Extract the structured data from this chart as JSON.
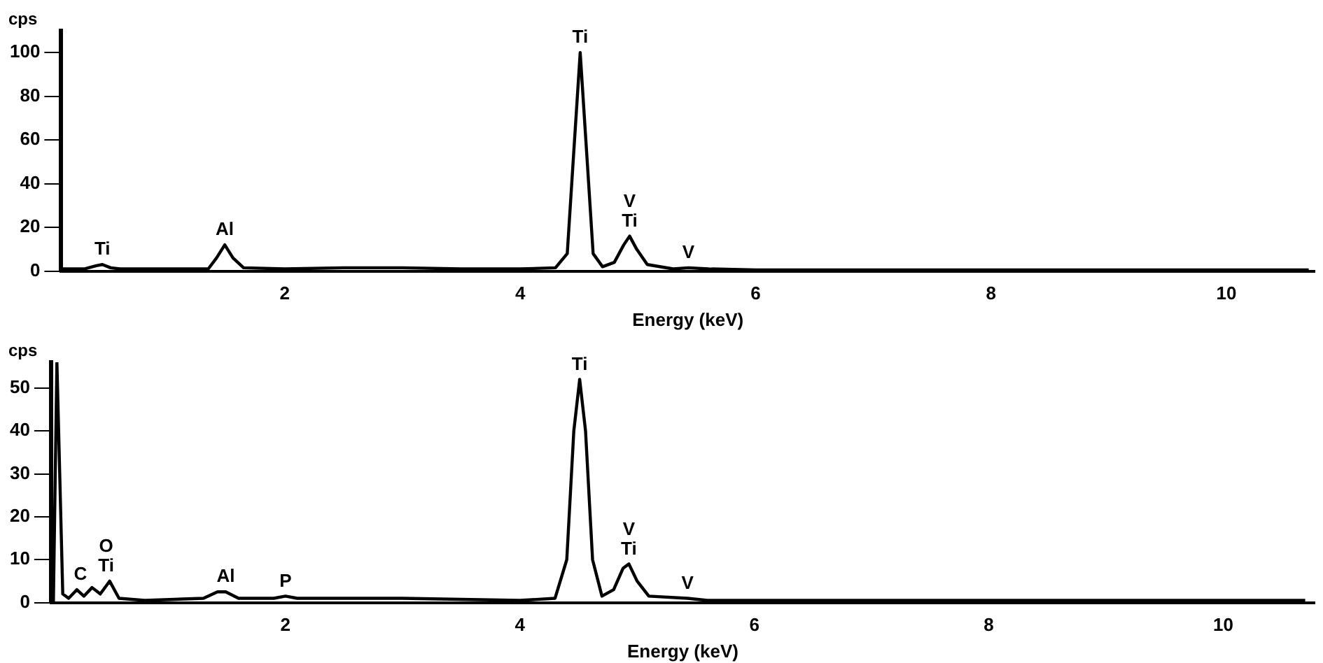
{
  "chart_data": [
    {
      "type": "line",
      "xlabel": "Energy (keV)",
      "ylabel": "cps",
      "xlim": [
        0.1,
        10.75
      ],
      "ylim": [
        0,
        110
      ],
      "xticks": [
        2,
        4,
        6,
        8,
        10
      ],
      "yticks": [
        0,
        20,
        40,
        60,
        80,
        100
      ],
      "grid": false,
      "legend": false,
      "marker": "none",
      "line_style": "solid",
      "series": [
        {
          "color": "#000000",
          "x": [
            0.1,
            0.3,
            0.4,
            0.45,
            0.52,
            0.6,
            1.0,
            1.35,
            1.42,
            1.49,
            1.56,
            1.65,
            2.0,
            2.5,
            3.0,
            3.5,
            4.0,
            4.3,
            4.4,
            4.45,
            4.51,
            4.57,
            4.62,
            4.7,
            4.8,
            4.88,
            4.93,
            4.99,
            5.08,
            5.3,
            5.43,
            5.6,
            6,
            8,
            10.7
          ],
          "values": [
            1,
            1,
            2.5,
            3,
            1.5,
            1,
            1,
            1,
            6,
            12,
            6,
            1.5,
            1,
            1.5,
            1.5,
            1,
            1,
            1.5,
            8,
            50,
            100,
            50,
            8,
            2,
            4,
            12,
            16,
            10,
            3,
            1,
            1.5,
            1,
            0.5,
            0.5,
            0.5
          ]
        }
      ],
      "annotations": [
        {
          "text": "Ti",
          "x": 0.45,
          "y": 3
        },
        {
          "text": "Al",
          "x": 1.49,
          "y": 12
        },
        {
          "text": "Ti",
          "x": 4.51,
          "y": 100
        },
        {
          "text": "Ti",
          "x": 4.93,
          "y": 16
        },
        {
          "text": "V",
          "x": 4.93,
          "y": 16
        },
        {
          "text": "V",
          "x": 5.43,
          "y": 1.5
        }
      ]
    },
    {
      "type": "line",
      "xlabel": "Energy (keV)",
      "ylabel": "cps",
      "xlim": [
        0,
        10.78
      ],
      "ylim": [
        0,
        56
      ],
      "xticks": [
        2,
        4,
        6,
        8,
        10
      ],
      "yticks": [
        0,
        10,
        20,
        30,
        40,
        50
      ],
      "grid": false,
      "legend": false,
      "marker": "none",
      "line_style": "solid",
      "series": [
        {
          "color": "#000000",
          "x": [
            0.02,
            0.05,
            0.1,
            0.15,
            0.22,
            0.28,
            0.35,
            0.42,
            0.5,
            0.58,
            0.8,
            1.3,
            1.42,
            1.49,
            1.6,
            1.9,
            2.0,
            2.1,
            3,
            4,
            4.3,
            4.4,
            4.46,
            4.51,
            4.56,
            4.62,
            4.7,
            4.8,
            4.88,
            4.93,
            5.0,
            5.1,
            5.43,
            5.6,
            10.7
          ],
          "values": [
            0,
            56,
            2,
            1,
            3,
            1.5,
            3.5,
            2,
            5,
            1,
            0.5,
            1,
            2.5,
            2.5,
            1,
            1,
            1.5,
            1,
            1,
            0.5,
            1,
            10,
            40,
            52,
            40,
            10,
            1.5,
            3,
            8,
            9,
            5,
            1.5,
            1,
            0.5,
            0.5
          ]
        }
      ],
      "annotations": [
        {
          "text": "C",
          "x": 0.25,
          "y": 3
        },
        {
          "text": "Ti",
          "x": 0.47,
          "y": 5
        },
        {
          "text": "O",
          "x": 0.47,
          "y": 5
        },
        {
          "text": "Al",
          "x": 1.49,
          "y": 2.5
        },
        {
          "text": "P",
          "x": 2.0,
          "y": 1.5
        },
        {
          "text": "Ti",
          "x": 4.51,
          "y": 52
        },
        {
          "text": "Ti",
          "x": 4.93,
          "y": 9
        },
        {
          "text": "V",
          "x": 4.93,
          "y": 9
        },
        {
          "text": "V",
          "x": 5.43,
          "y": 1
        }
      ]
    }
  ]
}
